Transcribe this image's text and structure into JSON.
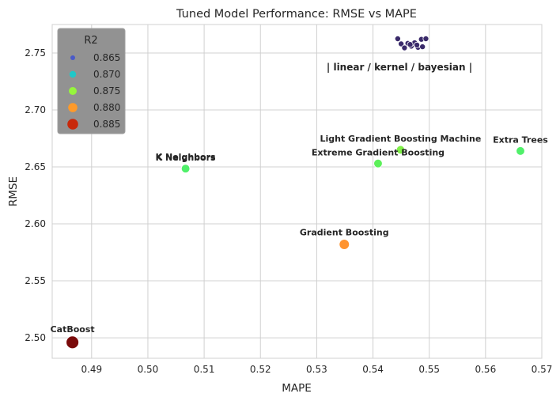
{
  "chart_data": {
    "type": "scatter",
    "title": "Tuned Model Performance: RMSE vs MAPE",
    "xlabel": "MAPE",
    "ylabel": "RMSE",
    "xlim": [
      0.483,
      0.57
    ],
    "ylim": [
      2.482,
      2.775
    ],
    "xticks": [
      "0.49",
      "0.50",
      "0.51",
      "0.52",
      "0.53",
      "0.54",
      "0.55",
      "0.56",
      "0.57"
    ],
    "yticks": [
      "2.50",
      "2.55",
      "2.60",
      "2.65",
      "2.70",
      "2.75"
    ],
    "grid": true,
    "legend": {
      "title": "R2",
      "placement": "top-left",
      "entries": [
        {
          "label": "0.865",
          "color": "#4a5ac8",
          "size": "small"
        },
        {
          "label": "0.870",
          "color": "#20c8c8",
          "size": "small-medium"
        },
        {
          "label": "0.875",
          "color": "#96f53c",
          "size": "medium"
        },
        {
          "label": "0.880",
          "color": "#ff9a2a",
          "size": "medium-large"
        },
        {
          "label": "0.885",
          "color": "#c8280a",
          "size": "large"
        }
      ]
    },
    "points": [
      {
        "label": "CatBoost",
        "x": 0.4866,
        "y": 2.496,
        "r2": 0.887,
        "color": "#7a0a0a"
      },
      {
        "label": "K Neighbors",
        "x": 0.5067,
        "y": 2.649,
        "r2": 0.8755,
        "color": "#50f06a"
      },
      {
        "label": "K Neighbors",
        "x": 0.5067,
        "y": 2.6485,
        "r2": 0.8755,
        "color": "#50f06a"
      },
      {
        "label": "Gradient Boosting",
        "x": 0.5349,
        "y": 2.582,
        "r2": 0.88,
        "color": "#ff9430"
      },
      {
        "label": "Extreme Gradient Boosting",
        "x": 0.5409,
        "y": 2.653,
        "r2": 0.8755,
        "color": "#5cf05a"
      },
      {
        "label": "Light Gradient Boosting Machine",
        "x": 0.5449,
        "y": 2.665,
        "r2": 0.8752,
        "color": "#80f048"
      },
      {
        "label": "Extra Trees",
        "x": 0.5662,
        "y": 2.664,
        "r2": 0.8755,
        "color": "#50f06a"
      }
    ],
    "cluster": {
      "label": "| linear / kernel / bayesian |",
      "color": "#3a2a6a",
      "points": [
        {
          "x": 0.5444,
          "y": 2.7625
        },
        {
          "x": 0.545,
          "y": 2.758
        },
        {
          "x": 0.5456,
          "y": 2.7545
        },
        {
          "x": 0.5462,
          "y": 2.7585
        },
        {
          "x": 0.5468,
          "y": 2.756
        },
        {
          "x": 0.5474,
          "y": 2.759
        },
        {
          "x": 0.548,
          "y": 2.755
        },
        {
          "x": 0.5486,
          "y": 2.762
        },
        {
          "x": 0.5494,
          "y": 2.7625
        },
        {
          "x": 0.5478,
          "y": 2.757
        },
        {
          "x": 0.5488,
          "y": 2.7555
        },
        {
          "x": 0.5466,
          "y": 2.7575
        }
      ]
    }
  }
}
